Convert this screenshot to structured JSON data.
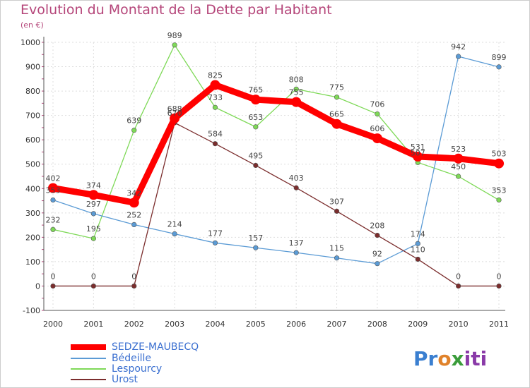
{
  "header": {
    "title": "Evolution du Montant de la Dette par Habitant",
    "subtitle": "(en €)"
  },
  "chart_data": {
    "type": "line",
    "title": "Evolution du Montant de la Dette par Habitant",
    "subtitle": "(en €)",
    "xlabel": "",
    "ylabel": "",
    "x": [
      "2000",
      "2001",
      "2002",
      "2003",
      "2004",
      "2005",
      "2006",
      "2007",
      "2008",
      "2009",
      "2010",
      "2011"
    ],
    "ylim": [
      -100,
      1000
    ],
    "yticks": [
      -100,
      0,
      100,
      200,
      300,
      400,
      500,
      600,
      700,
      800,
      900,
      1000
    ],
    "grid": true,
    "legend_position": "bottom-left",
    "series": [
      {
        "name": "SEDZE-MAUBECQ",
        "color": "#ff0000",
        "values": [
          402,
          374,
          342,
          688,
          825,
          765,
          755,
          665,
          606,
          531,
          523,
          503
        ],
        "labels": [
          "402",
          "374",
          "342",
          "688",
          "825",
          "765",
          "755",
          "665",
          "606",
          "531",
          "523",
          "503"
        ]
      },
      {
        "name": "Bédeille",
        "color": "#5b9bd5",
        "values": [
          353,
          297,
          252,
          214,
          177,
          157,
          137,
          115,
          92,
          174,
          942,
          899
        ],
        "labels": [
          "353",
          "297",
          "252",
          "214",
          "177",
          "157",
          "137",
          "115",
          "92",
          "174",
          "942",
          "899"
        ]
      },
      {
        "name": "Lespourcy",
        "color": "#7ed957",
        "values": [
          232,
          195,
          639,
          989,
          733,
          653,
          808,
          775,
          706,
          507,
          450,
          353
        ],
        "labels": [
          "232",
          "195",
          "639",
          "989",
          "733",
          "653",
          "808",
          "775",
          "706",
          "507",
          "450",
          "353"
        ]
      },
      {
        "name": "Urost",
        "color": "#7b2d2d",
        "values": [
          0,
          0,
          0,
          670,
          584,
          495,
          403,
          307,
          208,
          110,
          0,
          0
        ],
        "labels": [
          "0",
          "0",
          "0",
          "670",
          "584",
          "495",
          "403",
          "307",
          "208",
          "110",
          "0",
          "0"
        ]
      }
    ]
  },
  "legend": {
    "items": [
      {
        "label": "SEDZE-MAUBECQ",
        "color": "#ff0000"
      },
      {
        "label": "Bédeille",
        "color": "#5b9bd5"
      },
      {
        "label": "Lespourcy",
        "color": "#7ed957"
      },
      {
        "label": "Urost",
        "color": "#7b2d2d"
      }
    ]
  },
  "logo": {
    "part1": "Pr",
    "part2": "o",
    "part3": "x",
    "part4": "iti"
  }
}
